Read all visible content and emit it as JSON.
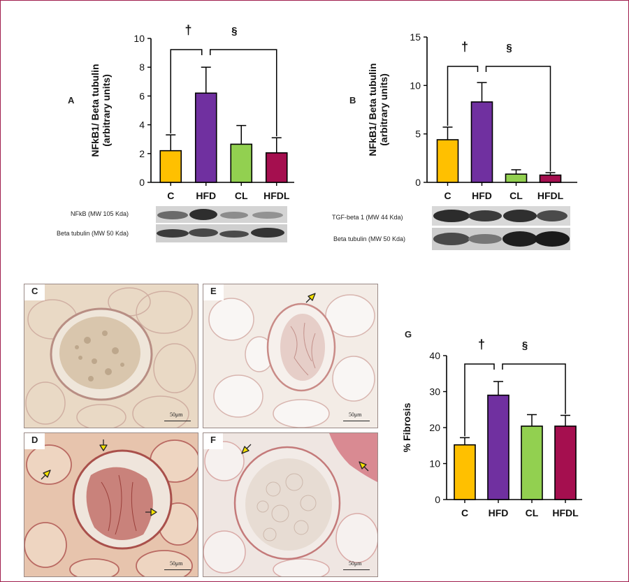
{
  "colors": {
    "C": "#ffc000",
    "HFD": "#7030a0",
    "CL": "#92d050",
    "HFDL": "#a50f4f",
    "frame": "#a01d4d"
  },
  "chart_data": [
    {
      "id": "A",
      "type": "bar",
      "panel_label": "A",
      "categories": [
        "C",
        "HFD",
        "CL",
        "HFDL"
      ],
      "values": [
        2.2,
        6.2,
        2.65,
        2.05
      ],
      "errors": [
        1.1,
        1.8,
        1.3,
        1.05
      ],
      "ylabel": "NFkB1/ Beta tubulin\n(arbitrary units)",
      "ylim": [
        0,
        10
      ],
      "yticks": [
        0,
        2,
        4,
        6,
        8,
        10
      ],
      "significance": [
        {
          "symbol": "†",
          "from": 0,
          "to": 1
        },
        {
          "symbol": "§",
          "from": 1,
          "to": 3
        }
      ],
      "blot_labels": [
        "NFkB (MW 105 Kda)",
        "Beta tubulin (MW 50 Kda)"
      ]
    },
    {
      "id": "B",
      "type": "bar",
      "panel_label": "B",
      "categories": [
        "C",
        "HFD",
        "CL",
        "HFDL"
      ],
      "values": [
        4.4,
        8.3,
        0.85,
        0.75
      ],
      "errors": [
        1.3,
        2.0,
        0.45,
        0.25
      ],
      "ylabel": "NFkB1/ Beta tubulin\n(arbitrary units)",
      "ylim": [
        0,
        15
      ],
      "yticks": [
        0,
        5,
        10,
        15
      ],
      "significance": [
        {
          "symbol": "†",
          "from": 0,
          "to": 1
        },
        {
          "symbol": "§",
          "from": 1,
          "to": 3
        }
      ],
      "blot_labels": [
        "TGF-beta 1  (MW 44 Kda)",
        "Beta tubulin (MW 50 Kda)"
      ]
    },
    {
      "id": "G",
      "type": "bar",
      "panel_label": "G",
      "categories": [
        "C",
        "HFD",
        "CL",
        "HFDL"
      ],
      "values": [
        15.2,
        29.0,
        20.4,
        20.4
      ],
      "errors": [
        2.0,
        3.8,
        3.2,
        3.0
      ],
      "ylabel": "% Fibrosis",
      "ylim": [
        0,
        40
      ],
      "yticks": [
        0,
        10,
        20,
        30,
        40
      ],
      "significance": [
        {
          "symbol": "†",
          "from": 0,
          "to": 1
        },
        {
          "symbol": "§",
          "from": 1,
          "to": 3
        }
      ]
    }
  ],
  "micrographs": [
    {
      "label": "C",
      "scale": "50μm"
    },
    {
      "label": "E",
      "scale": "50μm"
    },
    {
      "label": "D",
      "scale": "50μm"
    },
    {
      "label": "F",
      "scale": "50μm"
    }
  ]
}
